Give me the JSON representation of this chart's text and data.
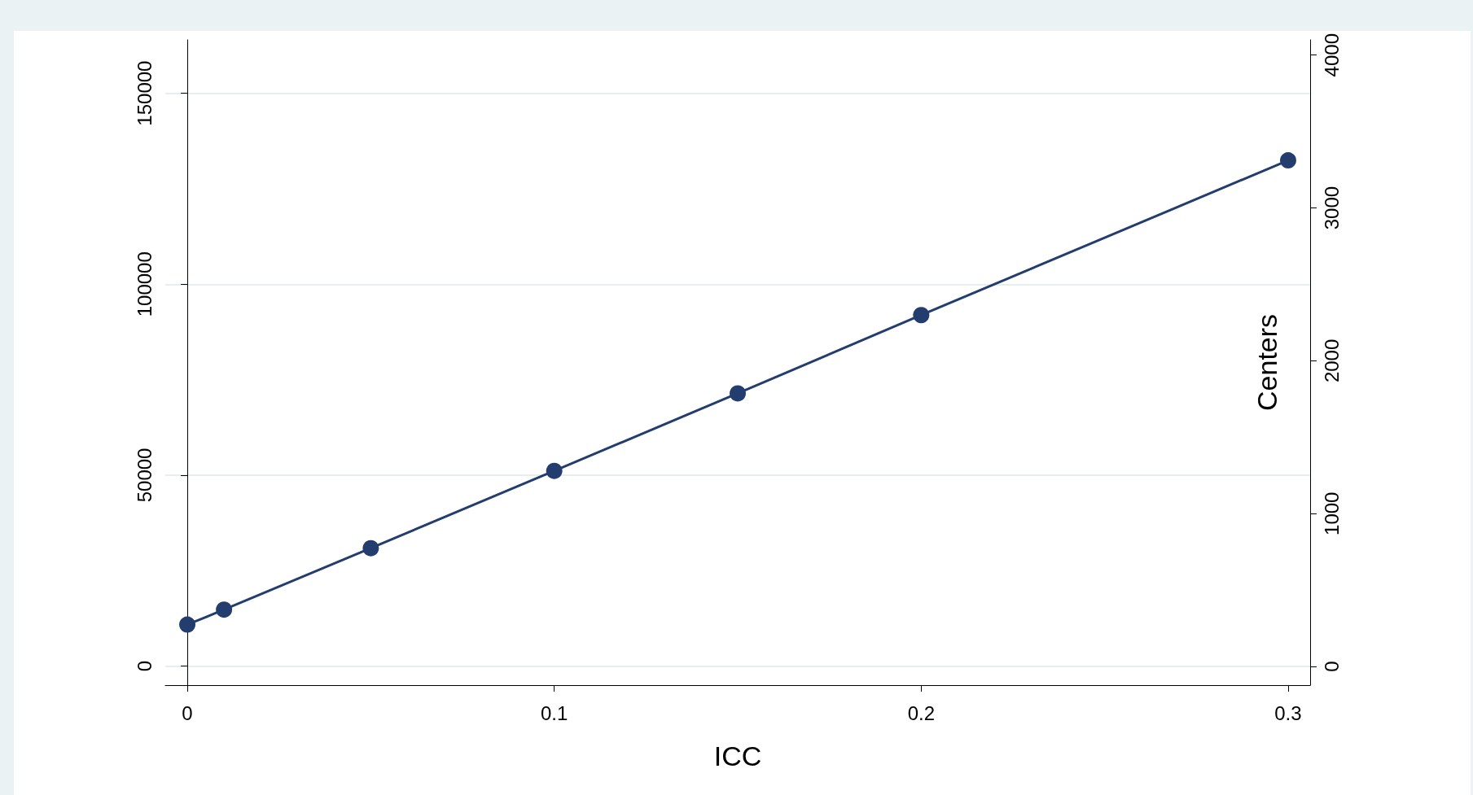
{
  "chart_data": {
    "type": "line",
    "xlabel": "ICC",
    "y2label": "Centers",
    "x": [
      0,
      0.01,
      0.05,
      0.1,
      0.15,
      0.2,
      0.3
    ],
    "series": [
      {
        "color": "#233d6e",
        "axis": "y2",
        "values": [
          274,
          372,
          774,
          1280,
          1787,
          2299,
          3311
        ]
      }
    ],
    "xlim": [
      -0.006,
      0.306
    ],
    "xticks": [
      0,
      0.1,
      0.2,
      0.3
    ],
    "ylim": [
      -5000,
      164000
    ],
    "yticks": [
      0,
      50000,
      100000,
      150000
    ],
    "y2lim": [
      -122,
      4100
    ],
    "y2ticks": [
      0,
      1000,
      2000,
      3000,
      4000
    ],
    "grid": "y",
    "marker": "circle",
    "line_style": "solid"
  }
}
